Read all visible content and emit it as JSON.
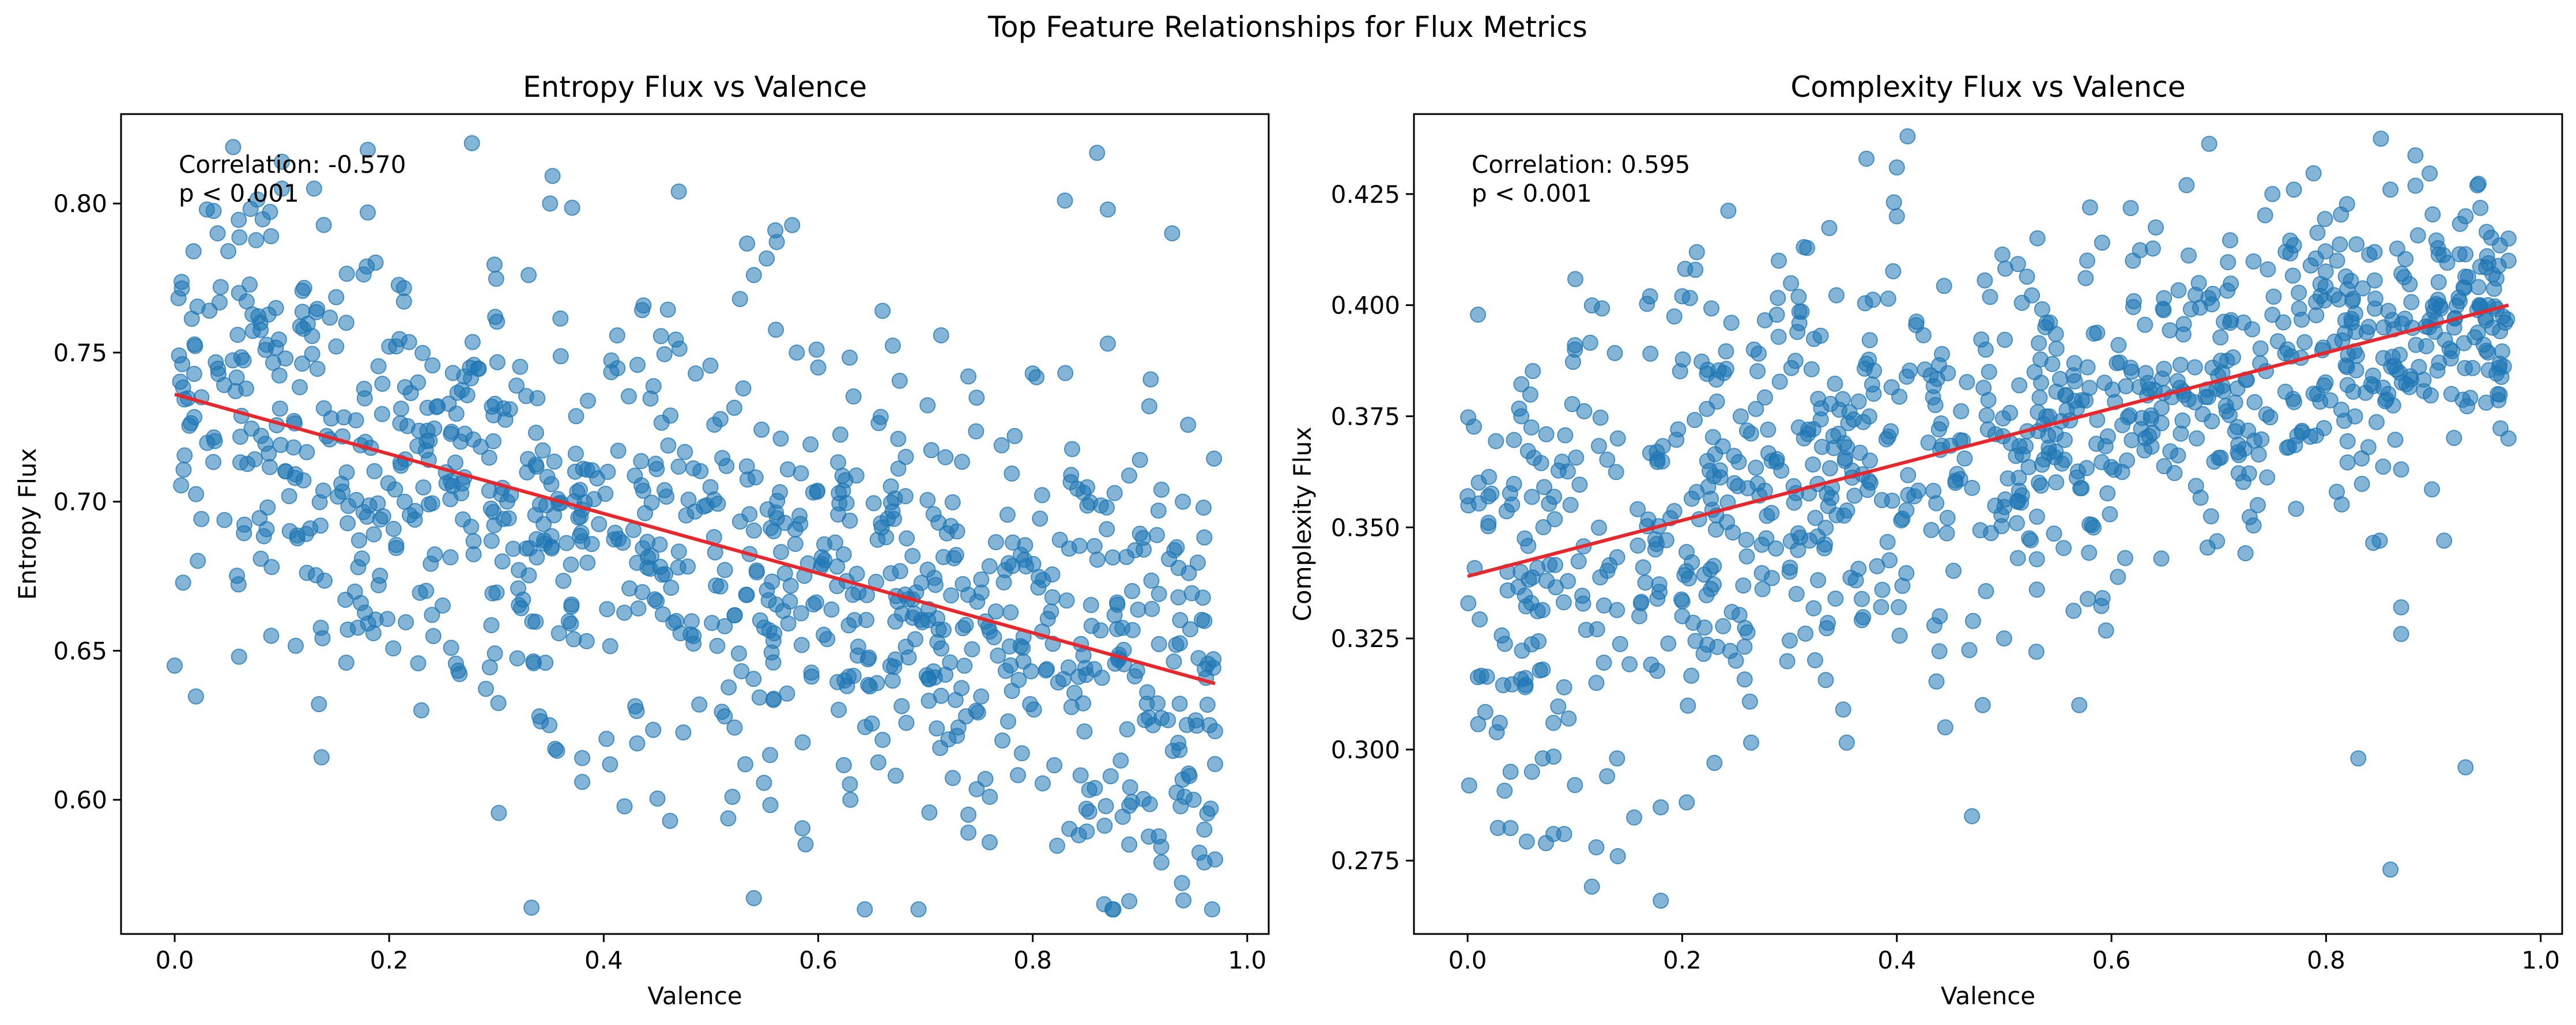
{
  "suptitle": "Top Feature Relationships for Flux Metrics",
  "colors": {
    "points": "#1f77b4",
    "trend": "#e8262b",
    "axis": "#000000",
    "background": "#ffffff"
  },
  "chart_data": [
    {
      "type": "scatter",
      "title": "Entropy Flux vs Valence",
      "xlabel": "Valence",
      "ylabel": "Entropy Flux",
      "xlim": [
        -0.05,
        1.02
      ],
      "ylim": [
        0.555,
        0.83
      ],
      "xticks": [
        0.0,
        0.2,
        0.4,
        0.6,
        0.8,
        1.0
      ],
      "xtick_labels": [
        "0.0",
        "0.2",
        "0.4",
        "0.6",
        "0.8",
        "1.0"
      ],
      "yticks": [
        0.6,
        0.65,
        0.7,
        0.75,
        0.8
      ],
      "ytick_labels": [
        "0.60",
        "0.65",
        "0.70",
        "0.75",
        "0.80"
      ],
      "annotation": [
        "Correlation: -0.570",
        "p < 0.001"
      ],
      "grid": false,
      "trendline": {
        "x": [
          0.0,
          0.97
        ],
        "y": [
          0.736,
          0.639
        ]
      },
      "n_points": 1000,
      "points": [
        [
          0.0,
          0.645
        ],
        [
          0.03,
          0.798
        ],
        [
          0.04,
          0.79
        ],
        [
          0.05,
          0.784
        ],
        [
          0.1,
          0.814
        ],
        [
          0.1,
          0.805
        ],
        [
          0.13,
          0.805
        ],
        [
          0.18,
          0.818
        ],
        [
          0.18,
          0.797
        ],
        [
          0.47,
          0.804
        ],
        [
          0.35,
          0.8
        ],
        [
          0.83,
          0.801
        ],
        [
          0.86,
          0.817
        ],
        [
          0.87,
          0.798
        ],
        [
          0.93,
          0.79
        ],
        [
          0.54,
          0.776
        ],
        [
          0.56,
          0.791
        ],
        [
          0.66,
          0.764
        ],
        [
          0.87,
          0.753
        ],
        [
          0.91,
          0.741
        ],
        [
          0.06,
          0.648
        ],
        [
          0.09,
          0.655
        ],
        [
          0.16,
          0.646
        ],
        [
          0.23,
          0.63
        ],
        [
          0.34,
          0.628
        ],
        [
          0.38,
          0.614
        ],
        [
          0.38,
          0.606
        ],
        [
          0.54,
          0.567
        ],
        [
          0.52,
          0.601
        ],
        [
          0.63,
          0.6
        ],
        [
          0.74,
          0.595
        ],
        [
          0.74,
          0.589
        ],
        [
          0.76,
          0.601
        ],
        [
          0.85,
          0.597
        ],
        [
          0.89,
          0.598
        ],
        [
          0.89,
          0.585
        ],
        [
          0.89,
          0.566
        ],
        [
          0.92,
          0.579
        ],
        [
          0.95,
          0.6
        ],
        [
          0.96,
          0.579
        ],
        [
          0.97,
          0.58
        ],
        [
          0.96,
          0.59
        ],
        [
          0.97,
          0.612
        ],
        [
          0.97,
          0.623
        ],
        [
          0.96,
          0.66
        ],
        [
          0.96,
          0.688
        ],
        [
          0.92,
          0.704
        ],
        [
          0.94,
          0.7
        ],
        [
          0.9,
          0.714
        ],
        [
          0.6,
          0.745
        ],
        [
          0.58,
          0.75
        ],
        [
          0.74,
          0.742
        ],
        [
          0.8,
          0.743
        ],
        [
          0.06,
          0.77
        ],
        [
          0.08,
          0.76
        ],
        [
          0.12,
          0.758
        ],
        [
          0.16,
          0.76
        ],
        [
          0.2,
          0.752
        ],
        [
          0.27,
          0.742
        ],
        [
          0.33,
          0.776
        ]
      ]
    },
    {
      "type": "scatter",
      "title": "Complexity Flux vs Valence",
      "xlabel": "Valence",
      "ylabel": "Complexity Flux",
      "xlim": [
        -0.05,
        1.02
      ],
      "ylim": [
        0.2585,
        0.443
      ],
      "xticks": [
        0.0,
        0.2,
        0.4,
        0.6,
        0.8,
        1.0
      ],
      "xtick_labels": [
        "0.0",
        "0.2",
        "0.4",
        "0.6",
        "0.8",
        "1.0"
      ],
      "yticks": [
        0.275,
        0.3,
        0.325,
        0.35,
        0.375,
        0.4,
        0.425
      ],
      "ytick_labels": [
        "0.275",
        "0.300",
        "0.325",
        "0.350",
        "0.375",
        "0.400",
        "0.425"
      ],
      "annotation": [
        "Correlation: 0.595",
        "p < 0.001"
      ],
      "grid": false,
      "trendline": {
        "x": [
          0.0,
          0.97
        ],
        "y": [
          0.339,
          0.4
        ]
      },
      "n_points": 1000,
      "points": [
        [
          0.0,
          0.357
        ],
        [
          0.03,
          0.306
        ],
        [
          0.04,
          0.295
        ],
        [
          0.06,
          0.295
        ],
        [
          0.07,
          0.298
        ],
        [
          0.08,
          0.281
        ],
        [
          0.09,
          0.281
        ],
        [
          0.1,
          0.292
        ],
        [
          0.12,
          0.278
        ],
        [
          0.13,
          0.294
        ],
        [
          0.14,
          0.276
        ],
        [
          0.18,
          0.266
        ],
        [
          0.18,
          0.287
        ],
        [
          0.23,
          0.297
        ],
        [
          0.41,
          0.438
        ],
        [
          0.4,
          0.431
        ],
        [
          0.4,
          0.42
        ],
        [
          0.29,
          0.41
        ],
        [
          0.48,
          0.31
        ],
        [
          0.53,
          0.322
        ],
        [
          0.57,
          0.31
        ],
        [
          0.47,
          0.285
        ],
        [
          0.83,
          0.298
        ],
        [
          0.86,
          0.273
        ],
        [
          0.93,
          0.296
        ],
        [
          0.87,
          0.326
        ],
        [
          0.87,
          0.332
        ],
        [
          0.91,
          0.347
        ],
        [
          0.85,
          0.347
        ],
        [
          0.81,
          0.358
        ],
        [
          0.86,
          0.426
        ],
        [
          0.93,
          0.42
        ],
        [
          0.67,
          0.427
        ],
        [
          0.75,
          0.425
        ],
        [
          0.77,
          0.426
        ],
        [
          0.58,
          0.422
        ],
        [
          0.95,
          0.411
        ],
        [
          0.97,
          0.41
        ],
        [
          0.96,
          0.38
        ],
        [
          0.97,
          0.37
        ],
        [
          0.97,
          0.415
        ],
        [
          0.92,
          0.397
        ],
        [
          0.35,
          0.309
        ],
        [
          0.44,
          0.33
        ],
        [
          0.5,
          0.325
        ],
        [
          0.1,
          0.39
        ],
        [
          0.1,
          0.391
        ],
        [
          0.17,
          0.402
        ],
        [
          0.2,
          0.402
        ],
        [
          0.05,
          0.375
        ],
        [
          0.07,
          0.318
        ],
        [
          0.08,
          0.306
        ],
        [
          0.09,
          0.314
        ],
        [
          0.12,
          0.315
        ],
        [
          0.16,
          0.33
        ],
        [
          0.2,
          0.33
        ],
        [
          0.25,
          0.32
        ],
        [
          0.3,
          0.34
        ],
        [
          0.14,
          0.37
        ],
        [
          0.62,
          0.41
        ]
      ]
    }
  ]
}
